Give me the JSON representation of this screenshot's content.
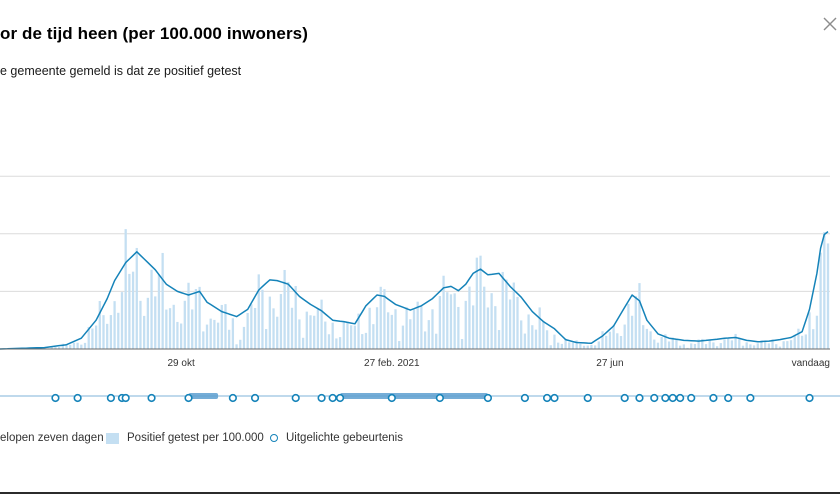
{
  "header": {
    "title": "or de tijd heen (per 100.000 inwoners)",
    "subtitle": "e gemeente gemeld is dat ze positief getest"
  },
  "icons": {
    "close": "close-icon"
  },
  "chart_data": {
    "type": "bar",
    "x_ticks": [
      "29 okt",
      "27 feb. 2021",
      "27 jun",
      "vandaag"
    ],
    "legend": {
      "line": "elopen zeven dagen",
      "bars": "Positief getest per 100.000",
      "events": "Uitgelichte gebeurtenis"
    },
    "grid": true,
    "legend_position": "bottom-left",
    "colors": {
      "line": "#1583b9",
      "bars": "#c4dff2",
      "grid": "#dcdcdc",
      "timeline": "#7fb3d8",
      "timeline_range": "#5d9fd0"
    },
    "trend_keyframes": [
      [
        0,
        0
      ],
      [
        12,
        0.2
      ],
      [
        18,
        0.6
      ],
      [
        22,
        1.5
      ],
      [
        26,
        4
      ],
      [
        29,
        7
      ],
      [
        31,
        9.5
      ],
      [
        34,
        12
      ],
      [
        37,
        13.5
      ],
      [
        39,
        12.5
      ],
      [
        42,
        11
      ],
      [
        45,
        9
      ],
      [
        48,
        8
      ],
      [
        51,
        7.5
      ],
      [
        54,
        8
      ],
      [
        56,
        6.5
      ],
      [
        60,
        5.2
      ],
      [
        64,
        4.5
      ],
      [
        67,
        5.5
      ],
      [
        70,
        8.2
      ],
      [
        73,
        9.6
      ],
      [
        75,
        9.5
      ],
      [
        78,
        9
      ],
      [
        81,
        7.3
      ],
      [
        84,
        6.2
      ],
      [
        87,
        5.3
      ],
      [
        90,
        4
      ],
      [
        93,
        3.8
      ],
      [
        96,
        3.5
      ],
      [
        99,
        6
      ],
      [
        102,
        7.5
      ],
      [
        104,
        7.3
      ],
      [
        107,
        6.2
      ],
      [
        111,
        5.4
      ],
      [
        114,
        6
      ],
      [
        117,
        7
      ],
      [
        120,
        8.5
      ],
      [
        122,
        8.7
      ],
      [
        124,
        8.1
      ],
      [
        126,
        9
      ],
      [
        128,
        10.5
      ],
      [
        130,
        11.1
      ],
      [
        132,
        10.3
      ],
      [
        135,
        10.5
      ],
      [
        138,
        8.7
      ],
      [
        141,
        7.2
      ],
      [
        144,
        5.2
      ],
      [
        147,
        3.8
      ],
      [
        150,
        2.8
      ],
      [
        153,
        1.3
      ],
      [
        156,
        0.9
      ],
      [
        160,
        0.8
      ],
      [
        163,
        1.8
      ],
      [
        166,
        3.2
      ],
      [
        169,
        5.8
      ],
      [
        171,
        7.5
      ],
      [
        173,
        6.7
      ],
      [
        175,
        4
      ],
      [
        178,
        2.1
      ],
      [
        181,
        1.5
      ],
      [
        185,
        1.2
      ],
      [
        189,
        1.1
      ],
      [
        193,
        1.3
      ],
      [
        196,
        1.5
      ],
      [
        199,
        1.6
      ],
      [
        202,
        1.2
      ],
      [
        205,
        1
      ],
      [
        208,
        1.1
      ],
      [
        211,
        1.3
      ],
      [
        214,
        1.6
      ],
      [
        217,
        2.4
      ],
      [
        219,
        5.5
      ],
      [
        221,
        10.5
      ],
      [
        222,
        14
      ],
      [
        223,
        15.9
      ],
      [
        224,
        16.3
      ]
    ],
    "events": [
      15,
      21,
      30,
      33,
      34,
      41,
      51,
      63,
      69,
      80,
      87,
      90,
      92,
      106,
      119,
      132,
      142,
      148,
      150,
      159,
      169,
      173,
      177,
      180,
      182,
      184,
      187,
      193,
      197,
      203,
      219
    ],
    "event_ranges": [
      [
        51,
        59
      ],
      [
        92,
        132
      ]
    ]
  }
}
